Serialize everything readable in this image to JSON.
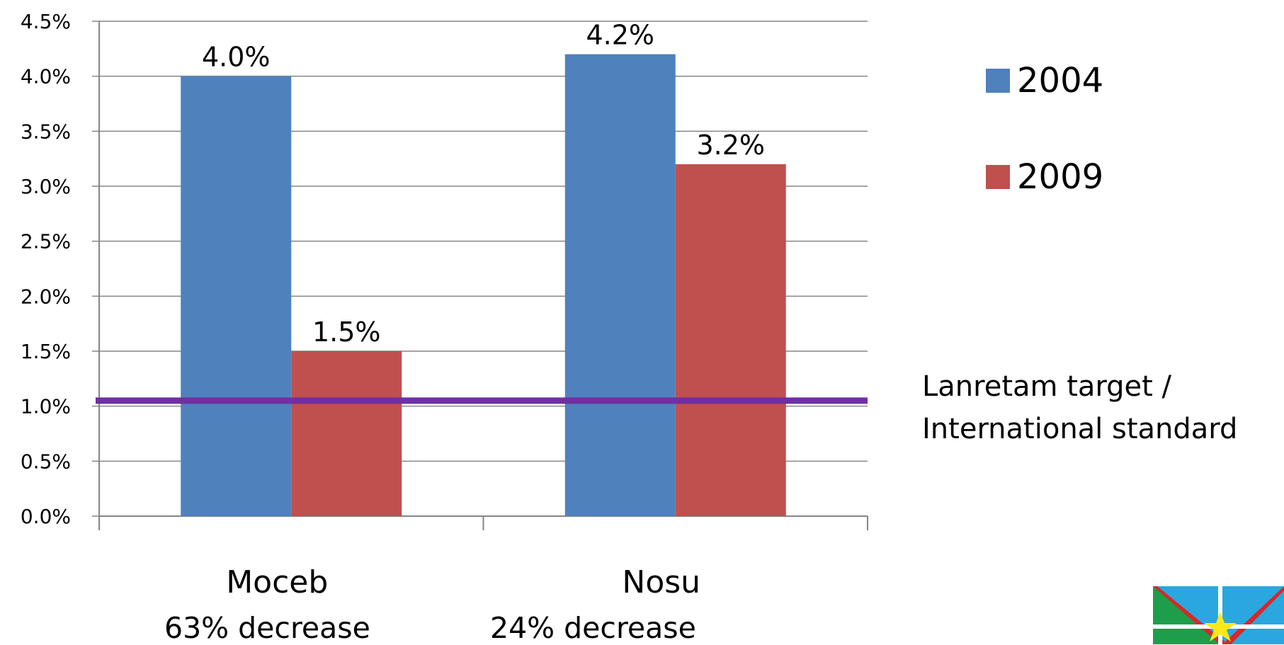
{
  "chart_data": {
    "type": "bar",
    "categories": [
      "Moceb",
      "Nosu"
    ],
    "series": [
      {
        "name": "2004",
        "values": [
          4.0,
          4.2
        ],
        "color": "#4F81BD"
      },
      {
        "name": "2009",
        "values": [
          1.5,
          3.2
        ],
        "color": "#C0504D"
      }
    ],
    "data_labels": [
      [
        "4.0%",
        "4.2%"
      ],
      [
        "1.5%",
        "3.2%"
      ]
    ],
    "y_ticks": [
      "0.0%",
      "0.5%",
      "1.0%",
      "1.5%",
      "2.0%",
      "2.5%",
      "3.0%",
      "3.5%",
      "4.0%",
      "4.5%"
    ],
    "ylim": [
      0,
      4.5
    ],
    "grid": true,
    "legend_position": "right",
    "reference_line": {
      "value": 1.05,
      "color": "#7030A0",
      "label_lines": [
        "Lanretam  target /",
        "International standard"
      ]
    },
    "annotations": [
      "63% decrease",
      "24% decrease"
    ]
  },
  "logo": {
    "name": "flag-logo"
  }
}
